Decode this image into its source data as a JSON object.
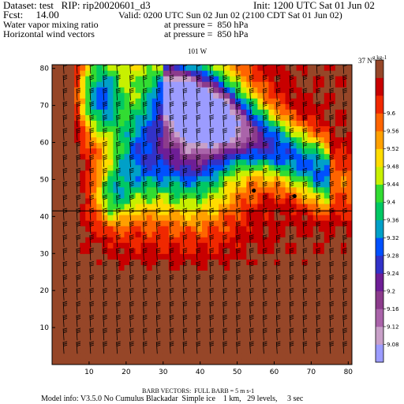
{
  "header": {
    "dataset": "Dataset: test   RIP: rip20020601_d3",
    "init": "Init: 1200 UTC Sat 01 Jun 02",
    "fcst": "Fcst:     14.00",
    "valid": "Valid: 0200 UTC Sun 02 Jun 02 (2100 CDT Sat 01 Jun 02)",
    "field1": "Water vapor mixing ratio",
    "field1_level": "at pressure =  850 hPa",
    "field2": "Horizontal wind vectors",
    "field2_level": "at pressure =  850 hPa"
  },
  "plot": {
    "top_label_left": "101 W",
    "top_label_right": "37 N",
    "colorbar_unit": "g kg-1"
  },
  "footer": {
    "barb_note": "BARB VECTORS:  FULL BARB = 5 m s-1",
    "model_info": "Model info: V3.5.0 No Cumulus Blackadar  Simple ice    1 km,   29 levels,     3 sec"
  },
  "chart_data": {
    "type": "heatmap",
    "title": "Water vapor mixing ratio",
    "xlabel": "",
    "ylabel": "",
    "xlim": [
      0,
      81
    ],
    "ylim": [
      0,
      81
    ],
    "x_ticks": [
      10,
      20,
      30,
      40,
      50,
      60,
      70,
      80
    ],
    "y_ticks": [
      10,
      20,
      30,
      40,
      50,
      60,
      70,
      80
    ],
    "colorbar_levels": [
      "9.08",
      "9.12",
      "9.16",
      "9.2",
      "9.24",
      "9.28",
      "9.32",
      "9.36",
      "9.4",
      "9.44",
      "9.48",
      "9.52",
      "9.56",
      "9.6"
    ],
    "colorbar_colors": [
      "#9c9cff",
      "#c8a0c8",
      "#aa64aa",
      "#8c3c8c",
      "#6e1e96",
      "#3232c8",
      "#0050ff",
      "#00a0c8",
      "#00c864",
      "#32dc32",
      "#c8f000",
      "#ffdc00",
      "#ffa000",
      "#ff6400",
      "#f02800",
      "#c80000",
      "#964628"
    ],
    "reference_line_y": 41.5,
    "points": [
      [
        54.5,
        47
      ],
      [
        65.5,
        45.5
      ]
    ],
    "grid": false,
    "legend": "right"
  },
  "colors": {
    "background": "#ffffff",
    "barb": "#000000"
  }
}
